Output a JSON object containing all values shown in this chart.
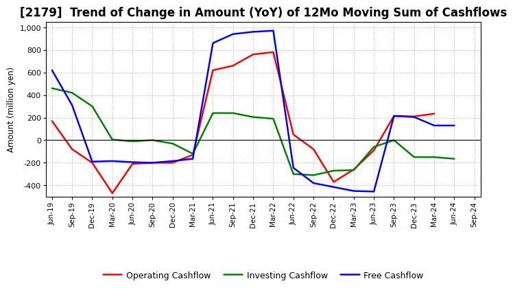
{
  "title": "[2179]  Trend of Change in Amount (YoY) of 12Mo Moving Sum of Cashflows",
  "ylabel": "Amount (million yen)",
  "x_labels": [
    "Jun-19",
    "Sep-19",
    "Dec-19",
    "Mar-20",
    "Jun-20",
    "Sep-20",
    "Dec-20",
    "Mar-21",
    "Jun-21",
    "Sep-21",
    "Dec-21",
    "Mar-22",
    "Jun-22",
    "Sep-22",
    "Dec-22",
    "Mar-23",
    "Jun-23",
    "Sep-23",
    "Dec-23",
    "Mar-24",
    "Jun-24",
    "Sep-24"
  ],
  "operating_cashflow": [
    170,
    -80,
    -200,
    -470,
    -210,
    -200,
    -200,
    -130,
    620,
    660,
    760,
    780,
    50,
    -80,
    -370,
    -260,
    -90,
    215,
    210,
    235,
    null,
    null
  ],
  "investing_cashflow": [
    460,
    420,
    300,
    5,
    -10,
    0,
    -30,
    -120,
    240,
    240,
    205,
    190,
    -300,
    -310,
    -270,
    -265,
    -60,
    0,
    -150,
    -150,
    -165,
    null
  ],
  "free_cashflow": [
    620,
    310,
    -190,
    -185,
    -195,
    -200,
    -185,
    -165,
    860,
    940,
    960,
    970,
    -245,
    -380,
    -415,
    -450,
    -455,
    215,
    205,
    130,
    130,
    null
  ],
  "ylim": [
    -500,
    1050
  ],
  "yticks": [
    -400,
    -200,
    0,
    200,
    400,
    600,
    800,
    1000
  ],
  "operating_color": "#ff0000",
  "investing_color": "#008000",
  "free_color": "#0000ff",
  "bg_color": "#ffffff",
  "grid_color": "#b0b0b0",
  "title_fontsize": 12,
  "linewidth": 1.8,
  "legend_labels": [
    "Operating Cashflow",
    "Investing Cashflow",
    "Free Cashflow"
  ]
}
